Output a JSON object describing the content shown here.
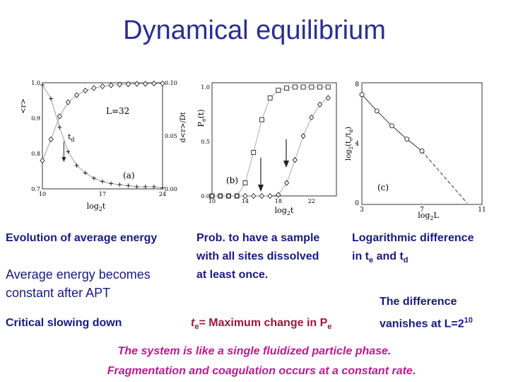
{
  "slide": {
    "title": "Dynamical equilibrium",
    "col1": {
      "line1": "Evolution of average energy",
      "line2a": "Average energy becomes",
      "line2b": "constant after APT",
      "line3": "Critical slowing down"
    },
    "col2": {
      "line1": "Prob. to have a sample",
      "line2": "with all sites dissolved",
      "line3": "at least once.",
      "te_label_pre": "t",
      "te_label_sub": "e",
      "te_label_mid": "= Maximum change in P",
      "te_label_sub2": "e"
    },
    "col3": {
      "line1": "Logarithmic difference",
      "line2_pre": "in t",
      "line2_sub1": "e",
      "line2_mid": " and t",
      "line2_sub2": "d",
      "diff1": "The difference",
      "diff2_pre": "vanishes at L=2",
      "diff2_sup": "10"
    },
    "conclusion1": "The system is like a single fluidized particle phase.",
    "conclusion2": "Fragmentation and coagulation occurs at a constant rate."
  },
  "colors": {
    "title": "#2b2f8f",
    "navy": "#1a1a80",
    "red": "#a0163c",
    "magenta": "#c0178f"
  },
  "chart_data": [
    {
      "type": "scatter",
      "panel_label": "(a)",
      "xlabel": "log2t",
      "ylabel_left": "<r>",
      "ylabel_right": "d<r>/Dt",
      "annotations": [
        "L=32",
        "td"
      ],
      "xlim": [
        10,
        24
      ],
      "xticks": [
        "10",
        "17",
        "24"
      ],
      "ylim_left": [
        0.7,
        1.0
      ],
      "yticks_left": [
        "0.7",
        "0.8",
        "0.9",
        "1.0"
      ],
      "ylim_right": [
        0.0,
        0.1
      ],
      "yticks_right": [
        "0.00",
        "0.05",
        "0.10"
      ],
      "series": [
        {
          "marker": "diamond",
          "x": [
            10,
            11,
            12,
            13,
            14,
            15,
            16,
            17,
            18,
            19,
            20,
            21,
            22,
            23,
            24
          ],
          "y": [
            0.78,
            0.84,
            0.905,
            0.945,
            0.965,
            0.978,
            0.985,
            0.99,
            0.993,
            0.995,
            0.996,
            0.997,
            0.997,
            0.998,
            0.998
          ]
        },
        {
          "marker": "plus",
          "x": [
            10,
            11,
            12,
            13,
            14,
            15,
            16,
            17,
            18,
            19,
            20,
            21,
            22,
            23,
            24
          ],
          "y": [
            0.098,
            0.085,
            0.058,
            0.035,
            0.022,
            0.015,
            0.01,
            0.007,
            0.005,
            0.004,
            0.003,
            0.002,
            0.002,
            0.002,
            0.001
          ]
        }
      ]
    },
    {
      "type": "scatter",
      "panel_label": "(b)",
      "xlabel": "log2t",
      "ylabel": "Pe(t)",
      "xlim": [
        10,
        25
      ],
      "xticks": [
        "10",
        "14",
        "18",
        "22"
      ],
      "ylim": [
        0.0,
        1.0
      ],
      "yticks": [
        "0.0",
        "0.5",
        "1.0"
      ],
      "series": [
        {
          "marker": "square",
          "x": [
            10,
            11,
            12,
            13,
            14,
            15,
            16,
            17,
            18,
            19,
            20,
            21,
            22,
            23,
            24
          ],
          "y": [
            0.0,
            0.0,
            0.0,
            0.0,
            0.12,
            0.4,
            0.7,
            0.9,
            0.97,
            0.99,
            1.0,
            1.0,
            1.0,
            1.0,
            1.0
          ]
        },
        {
          "marker": "diamond",
          "x": [
            10,
            11,
            12,
            13,
            14,
            15,
            16,
            17,
            18,
            19,
            20,
            21,
            22,
            23,
            24
          ],
          "y": [
            0.0,
            0.0,
            0.0,
            0.0,
            0.0,
            0.0,
            0.0,
            0.0,
            0.01,
            0.12,
            0.33,
            0.55,
            0.72,
            0.84,
            0.9
          ]
        }
      ]
    },
    {
      "type": "line",
      "panel_label": "(c)",
      "xlabel": "log2L",
      "ylabel": "log2(te/td)",
      "xlim": [
        3,
        11
      ],
      "xticks": [
        "3",
        "7",
        "11"
      ],
      "ylim": [
        0,
        8
      ],
      "yticks": [
        "0",
        "4",
        "8"
      ],
      "series": [
        {
          "marker": "circle",
          "x": [
            3,
            4,
            5,
            6,
            7
          ],
          "y": [
            7.3,
            6.2,
            5.2,
            4.3,
            3.5
          ]
        }
      ],
      "extrapolation": {
        "x": [
          7,
          10
        ],
        "y": [
          3.5,
          0.0
        ]
      }
    }
  ]
}
